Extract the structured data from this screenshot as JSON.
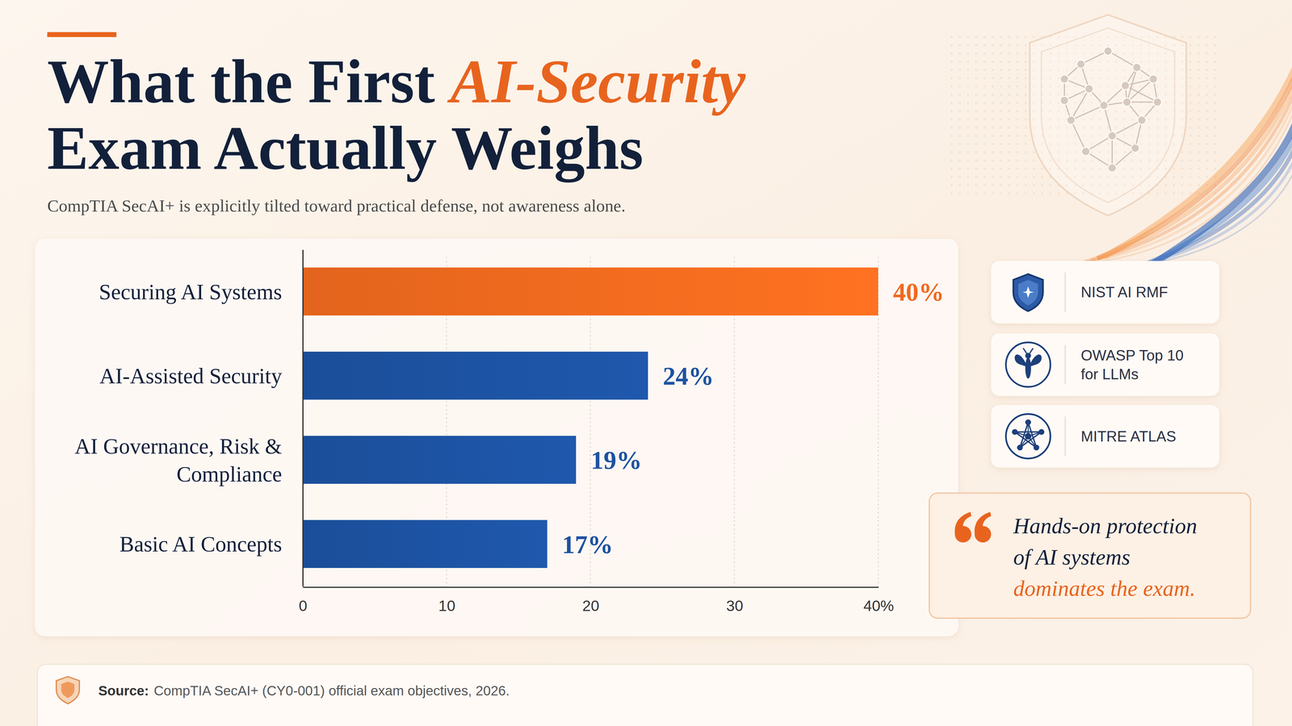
{
  "chart_data": {
    "type": "bar",
    "orientation": "horizontal",
    "title": "What the First AI-Security Exam Actually Weighs",
    "title_highlight": "AI-Security",
    "subtitle": "CompTIA SecAI+ is explicitly tilted toward practical defense, not awareness alone.",
    "categories": [
      "Securing AI Systems",
      "AI-Assisted Security",
      "AI Governance, Risk & Compliance",
      "Basic AI Concepts"
    ],
    "values": [
      40,
      24,
      19,
      17
    ],
    "value_labels": [
      "40%",
      "24%",
      "19%",
      "17%"
    ],
    "colors": [
      "#f06a1f",
      "#1d52a1",
      "#1d52a1",
      "#1d52a1"
    ],
    "xlim": [
      0,
      40
    ],
    "xticks": [
      0,
      10,
      20,
      30,
      {
        "value": 40,
        "label": "40%"
      }
    ],
    "grid": true,
    "data_labels": true,
    "frameworks": [
      "NIST AI RMF",
      "OWASP Top 10 for LLMs",
      "MITRE ATLAS"
    ],
    "quote": {
      "lines": [
        "Hands-on protection",
        "of AI systems"
      ],
      "emphasis": "dominates the exam."
    },
    "source_label": "Source:",
    "source": "CompTIA SecAI+ (CY0-001) official exam objectives, 2026."
  }
}
